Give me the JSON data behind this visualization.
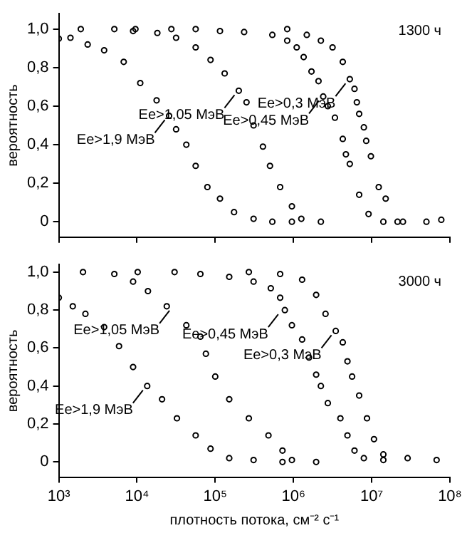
{
  "chart_data": [
    {
      "type": "scatter",
      "ylabel": "вероятность",
      "log": "x",
      "grid": false,
      "legend": false,
      "marker": "circle",
      "tick_labels": "y",
      "xlim": [
        1000,
        100000000
      ],
      "xticks": [
        {
          "value": 1000,
          "label": null
        },
        {
          "value": 10000,
          "label": null
        },
        {
          "value": 100000,
          "label": null
        },
        {
          "value": 1000000,
          "label": null
        },
        {
          "value": 10000000,
          "label": null
        },
        {
          "value": 100000000,
          "label": null
        }
      ],
      "ylim": [
        -0.08,
        1.08
      ],
      "yticks": [
        {
          "value": 0,
          "label": "0"
        },
        {
          "value": 0.2,
          "label": "0,2"
        },
        {
          "value": 0.4,
          "label": "0,4"
        },
        {
          "value": 0.6,
          "label": "0,6"
        },
        {
          "value": 0.8,
          "label": "0,8"
        },
        {
          "value": 1,
          "label": "1,0"
        }
      ],
      "annotations": [
        "1300 ч",
        {
          "text": "Ee>1,9 MэВ",
          "x": 25700,
          "y": 0.55
        },
        {
          "text": "Ee>1,05 MэВ",
          "x": 200000,
          "y": 0.68
        },
        {
          "text": "Ee>0,45 MэВ",
          "x": 2400000,
          "y": 0.65
        },
        {
          "text": "Ee>0,3 MэВ",
          "x": 5250000,
          "y": 0.74
        }
      ],
      "series": [
        {
          "color": "#000000",
          "x": [
            1000,
            1410,
            2340,
            3800,
            6760,
            11000,
            17800,
            25700,
            31600,
            42700,
            56200,
            79400,
            115000,
            174000,
            309000,
            537000,
            955000
          ],
          "values": [
            0.95,
            0.955,
            0.92,
            0.89,
            0.83,
            0.72,
            0.63,
            0.55,
            0.48,
            0.4,
            0.29,
            0.18,
            0.12,
            0.05,
            0.015,
            0,
            0
          ]
        },
        {
          "color": "#000000",
          "x": [
            1910,
            5130,
            8910,
            18200,
            31600,
            56200,
            87100,
            132000,
            200000,
            251000,
            309000,
            407000,
            501000,
            676000,
            955000,
            1260000,
            2240000
          ],
          "values": [
            1,
            1,
            0.99,
            0.98,
            0.955,
            0.905,
            0.84,
            0.77,
            0.68,
            0.62,
            0.5,
            0.39,
            0.29,
            0.18,
            0.08,
            0.015,
            0
          ]
        },
        {
          "color": "#000000",
          "x": [
            9550,
            27500,
            56200,
            115000,
            234000,
            537000,
            832000,
            1100000,
            1350000,
            1700000,
            2090000,
            2400000,
            2750000,
            3390000,
            4270000,
            4680000,
            5250000,
            6920000,
            9120000,
            14100000,
            25100000
          ],
          "values": [
            1,
            1,
            1,
            0.99,
            0.985,
            0.97,
            0.94,
            0.905,
            0.855,
            0.78,
            0.73,
            0.65,
            0.6,
            0.54,
            0.43,
            0.35,
            0.3,
            0.14,
            0.04,
            0,
            0
          ]
        },
        {
          "color": "#000000",
          "x": [
            832000,
            1480000,
            2240000,
            3160000,
            4270000,
            5250000,
            6030000,
            6460000,
            6920000,
            7940000,
            8510000,
            9770000,
            12300000,
            15100000,
            21400000,
            50100000,
            77600000
          ],
          "values": [
            1,
            0.97,
            0.94,
            0.905,
            0.83,
            0.74,
            0.69,
            0.62,
            0.56,
            0.49,
            0.42,
            0.34,
            0.18,
            0.12,
            0,
            0,
            0.01
          ]
        }
      ]
    },
    {
      "type": "scatter",
      "ylabel": "вероятность",
      "xlabel": "плотность потока, см⁻² с⁻¹",
      "log": "x",
      "grid": false,
      "legend": false,
      "marker": "circle",
      "xlim": [
        1000,
        100000000
      ],
      "xticks": [
        {
          "value": 1000,
          "label": "10³"
        },
        {
          "value": 10000,
          "label": "10⁴"
        },
        {
          "value": 100000,
          "label": "10⁵"
        },
        {
          "value": 1000000,
          "label": "10⁶"
        },
        {
          "value": 10000000,
          "label": "10⁷"
        },
        {
          "value": 100000000,
          "label": "10⁸"
        }
      ],
      "ylim": [
        -0.08,
        1.04
      ],
      "yticks": [
        {
          "value": 0,
          "label": "0"
        },
        {
          "value": 0.2,
          "label": "0,2"
        },
        {
          "value": 0.4,
          "label": "0,4"
        },
        {
          "value": 0.6,
          "label": "0,6"
        },
        {
          "value": 0.8,
          "label": "0,8"
        },
        {
          "value": 1,
          "label": "1,0"
        }
      ],
      "annotations": [
        "3000 ч",
        {
          "text": "Ee>1,9 MэВ",
          "x": 13500,
          "y": 0.4
        },
        {
          "text": "Ee>1,05 MэВ",
          "x": 29500,
          "y": 0.82
        },
        {
          "text": "Ee>0,45 MэВ",
          "x": 724000,
          "y": 0.8
        },
        {
          "text": "Ee>0,3 MэВ",
          "x": 3470000,
          "y": 0.69
        }
      ],
      "series": [
        {
          "color": "#000000",
          "x": [
            1000,
            1510,
            2190,
            3800,
            5890,
            8910,
            13500,
            20900,
            32400,
            56200,
            87100,
            151000,
            309000,
            724000
          ],
          "values": [
            0.865,
            0.82,
            0.78,
            0.71,
            0.61,
            0.5,
            0.4,
            0.33,
            0.23,
            0.14,
            0.07,
            0.02,
            0.01,
            0
          ]
        },
        {
          "color": "#000000",
          "x": [
            2040,
            5130,
            8910,
            13800,
            24000,
            42700,
            64600,
            75900,
            100000,
            151000,
            269000,
            479000,
            724000,
            955000,
            1950000
          ],
          "values": [
            1,
            0.99,
            0.95,
            0.9,
            0.82,
            0.72,
            0.66,
            0.57,
            0.45,
            0.33,
            0.23,
            0.14,
            0.06,
            0.01,
            0
          ]
        },
        {
          "color": "#000000",
          "x": [
            10200,
            30200,
            64600,
            151000,
            309000,
            513000,
            676000,
            776000,
            955000,
            1290000,
            1580000,
            1950000,
            2240000,
            2750000,
            3980000,
            4900000,
            6030000,
            7940000,
            14100000
          ],
          "values": [
            1,
            1,
            0.99,
            0.975,
            0.95,
            0.915,
            0.865,
            0.8,
            0.72,
            0.645,
            0.55,
            0.46,
            0.4,
            0.31,
            0.23,
            0.14,
            0.06,
            0.02,
            0.01
          ]
        },
        {
          "color": "#000000",
          "x": [
            269000,
            676000,
            1290000,
            1950000,
            2570000,
            3470000,
            4270000,
            4900000,
            5620000,
            6920000,
            8710000,
            10700000,
            14100000,
            28800000,
            67600000
          ],
          "values": [
            1,
            0.99,
            0.96,
            0.88,
            0.78,
            0.69,
            0.63,
            0.53,
            0.45,
            0.35,
            0.23,
            0.12,
            0.04,
            0.02,
            0.01
          ]
        }
      ]
    }
  ]
}
